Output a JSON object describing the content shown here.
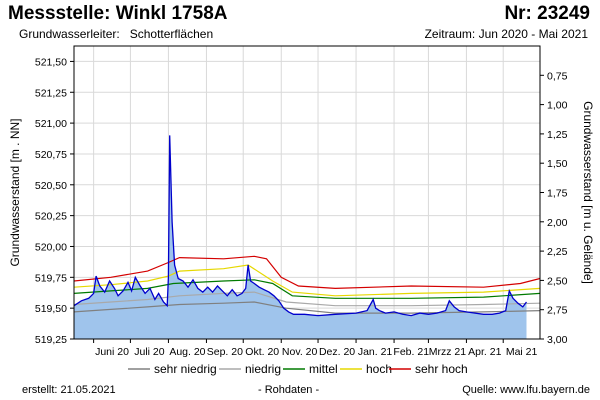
{
  "header": {
    "title": "Messstelle: Winkl 1758A",
    "number": "Nr: 23249",
    "aquifer_label": "Grundwasserleiter:",
    "aquifer_value": "Schotterflächen",
    "period": "Zeitraum: Jun 2020 - Mai 2021"
  },
  "footer": {
    "created": "erstellt:  21.05.2021",
    "raw": "- Rohdaten -",
    "source": "Quelle:  www.lfu.bayern.de"
  },
  "colors": {
    "area_fill": "#9fc4ec",
    "measured": "#0000cc",
    "sehr_niedrig": "#808080",
    "niedrig": "#a9a9a9",
    "mittel": "#007a00",
    "hoch": "#e6d800",
    "sehr_hoch": "#d40000",
    "grid": "#d9d9d9"
  },
  "chart_data": {
    "type": "line",
    "title": "",
    "xlabel": "",
    "ylabel": "Grundwasserstand [m . NN]",
    "ylabel_right": "Grundwasserstand [m u. Gelände]",
    "xlim": [
      "2020-05-16",
      "2021-05-31"
    ],
    "ylim": [
      519.25,
      521.625
    ],
    "ylim_right": [
      0.5,
      3.0
    ],
    "grid": true,
    "legend_position": "bottom",
    "x_tick_labels": [
      "Juni 20",
      "Juli 20",
      "Aug. 20",
      "Sep. 20",
      "Okt. 20",
      "Nov. 20",
      "Dez. 20",
      "Jan. 21",
      "Feb. 21",
      "Mrzz 21",
      "Apr. 21",
      "Mai 21"
    ],
    "x_tick_dates": [
      "2020-06-01",
      "2020-07-01",
      "2020-08-01",
      "2020-09-01",
      "2020-10-01",
      "2020-11-01",
      "2020-12-01",
      "2021-01-01",
      "2021-02-01",
      "2021-03-01",
      "2021-04-01",
      "2021-05-01"
    ],
    "y_ticks_left": [
      519.25,
      519.5,
      519.75,
      520.0,
      520.25,
      520.5,
      520.75,
      521.0,
      521.25,
      521.5
    ],
    "y_tick_labels_left": [
      "519,25",
      "519,50",
      "519,75",
      "520,00",
      "520,25",
      "520,50",
      "520,75",
      "521,00",
      "521,25",
      "521,50"
    ],
    "y_ticks_right": [
      0.75,
      1.0,
      1.25,
      1.5,
      1.75,
      2.0,
      2.25,
      2.5,
      2.75,
      3.0
    ],
    "y_tick_labels_right": [
      "0,75",
      "1,00",
      "1,25",
      "1,50",
      "1,75",
      "2,00",
      "2,25",
      "2,50",
      "2,75",
      "3,00"
    ],
    "series": [
      {
        "name": "sehr niedrig",
        "x": [
          "2020-05-16",
          "2020-06-15",
          "2020-07-15",
          "2020-08-10",
          "2020-09-15",
          "2020-10-10",
          "2020-11-05",
          "2020-12-15",
          "2021-02-15",
          "2021-04-15",
          "2021-05-31"
        ],
        "y": [
          519.47,
          519.49,
          519.51,
          519.53,
          519.54,
          519.55,
          519.5,
          519.46,
          519.46,
          519.47,
          519.48
        ]
      },
      {
        "name": "niedrig",
        "x": [
          "2020-05-16",
          "2020-06-15",
          "2020-07-15",
          "2020-08-10",
          "2020-09-15",
          "2020-10-10",
          "2020-11-05",
          "2020-12-15",
          "2021-02-15",
          "2021-04-15",
          "2021-05-31"
        ],
        "y": [
          519.53,
          519.55,
          519.57,
          519.6,
          519.62,
          519.63,
          519.55,
          519.52,
          519.52,
          519.53,
          519.54
        ]
      },
      {
        "name": "mittel",
        "x": [
          "2020-05-16",
          "2020-06-15",
          "2020-07-15",
          "2020-08-05",
          "2020-09-15",
          "2020-10-10",
          "2020-10-25",
          "2020-11-10",
          "2020-12-15",
          "2021-02-15",
          "2021-04-15",
          "2021-05-31"
        ],
        "y": [
          519.62,
          519.64,
          519.66,
          519.7,
          519.72,
          519.73,
          519.7,
          519.6,
          519.58,
          519.58,
          519.59,
          519.62
        ]
      },
      {
        "name": "hoch",
        "x": [
          "2020-05-16",
          "2020-06-15",
          "2020-07-15",
          "2020-08-01",
          "2020-08-10",
          "2020-09-15",
          "2020-10-05",
          "2020-10-25",
          "2020-11-10",
          "2020-12-15",
          "2021-02-15",
          "2021-04-15",
          "2021-05-31"
        ],
        "y": [
          519.67,
          519.69,
          519.72,
          519.76,
          519.8,
          519.82,
          519.85,
          519.72,
          519.63,
          519.6,
          519.62,
          519.63,
          519.66
        ]
      },
      {
        "name": "sehr hoch",
        "x": [
          "2020-05-16",
          "2020-06-15",
          "2020-07-15",
          "2020-08-01",
          "2020-08-10",
          "2020-09-15",
          "2020-10-10",
          "2020-10-20",
          "2020-11-01",
          "2020-11-15",
          "2020-12-15",
          "2021-02-15",
          "2021-04-15",
          "2021-05-15",
          "2021-05-31"
        ],
        "y": [
          519.72,
          519.75,
          519.8,
          519.87,
          519.91,
          519.9,
          519.92,
          519.9,
          519.75,
          519.68,
          519.66,
          519.68,
          519.67,
          519.7,
          519.74
        ]
      },
      {
        "name": "Grundwasserstand",
        "x": [
          "2020-05-16",
          "2020-05-22",
          "2020-05-28",
          "2020-06-01",
          "2020-06-03",
          "2020-06-06",
          "2020-06-10",
          "2020-06-14",
          "2020-06-18",
          "2020-06-21",
          "2020-06-25",
          "2020-06-29",
          "2020-07-02",
          "2020-07-05",
          "2020-07-09",
          "2020-07-13",
          "2020-07-17",
          "2020-07-21",
          "2020-07-24",
          "2020-07-28",
          "2020-07-31",
          "2020-08-01",
          "2020-08-02",
          "2020-08-04",
          "2020-08-06",
          "2020-08-09",
          "2020-08-13",
          "2020-08-17",
          "2020-08-21",
          "2020-08-25",
          "2020-08-29",
          "2020-09-02",
          "2020-09-06",
          "2020-09-10",
          "2020-09-14",
          "2020-09-18",
          "2020-09-22",
          "2020-09-26",
          "2020-09-30",
          "2020-10-03",
          "2020-10-05",
          "2020-10-07",
          "2020-10-10",
          "2020-10-14",
          "2020-10-18",
          "2020-10-22",
          "2020-10-26",
          "2020-10-30",
          "2020-11-03",
          "2020-11-07",
          "2020-11-11",
          "2020-11-20",
          "2020-12-01",
          "2020-12-15",
          "2021-01-01",
          "2021-01-10",
          "2021-01-15",
          "2021-01-17",
          "2021-01-20",
          "2021-01-25",
          "2021-02-01",
          "2021-02-08",
          "2021-02-15",
          "2021-02-22",
          "2021-03-01",
          "2021-03-08",
          "2021-03-15",
          "2021-03-18",
          "2021-03-22",
          "2021-03-26",
          "2021-04-01",
          "2021-04-08",
          "2021-04-15",
          "2021-04-22",
          "2021-04-28",
          "2021-05-03",
          "2021-05-06",
          "2021-05-09",
          "2021-05-13",
          "2021-05-17",
          "2021-05-20"
        ],
        "y": [
          519.52,
          519.56,
          519.58,
          519.62,
          519.76,
          519.68,
          519.63,
          519.72,
          519.66,
          519.6,
          519.64,
          519.71,
          519.64,
          519.75,
          519.68,
          519.62,
          519.66,
          519.57,
          519.62,
          519.55,
          519.52,
          519.75,
          520.9,
          520.2,
          519.85,
          519.74,
          519.72,
          519.67,
          519.73,
          519.66,
          519.63,
          519.67,
          519.63,
          519.68,
          519.64,
          519.6,
          519.65,
          519.6,
          519.62,
          519.66,
          519.85,
          519.72,
          519.7,
          519.67,
          519.65,
          519.63,
          519.6,
          519.56,
          519.5,
          519.47,
          519.45,
          519.45,
          519.44,
          519.45,
          519.46,
          519.48,
          519.57,
          519.5,
          519.48,
          519.46,
          519.47,
          519.45,
          519.44,
          519.46,
          519.45,
          519.46,
          519.48,
          519.56,
          519.51,
          519.48,
          519.47,
          519.46,
          519.45,
          519.45,
          519.46,
          519.48,
          519.64,
          519.58,
          519.54,
          519.51,
          519.55
        ]
      }
    ]
  }
}
